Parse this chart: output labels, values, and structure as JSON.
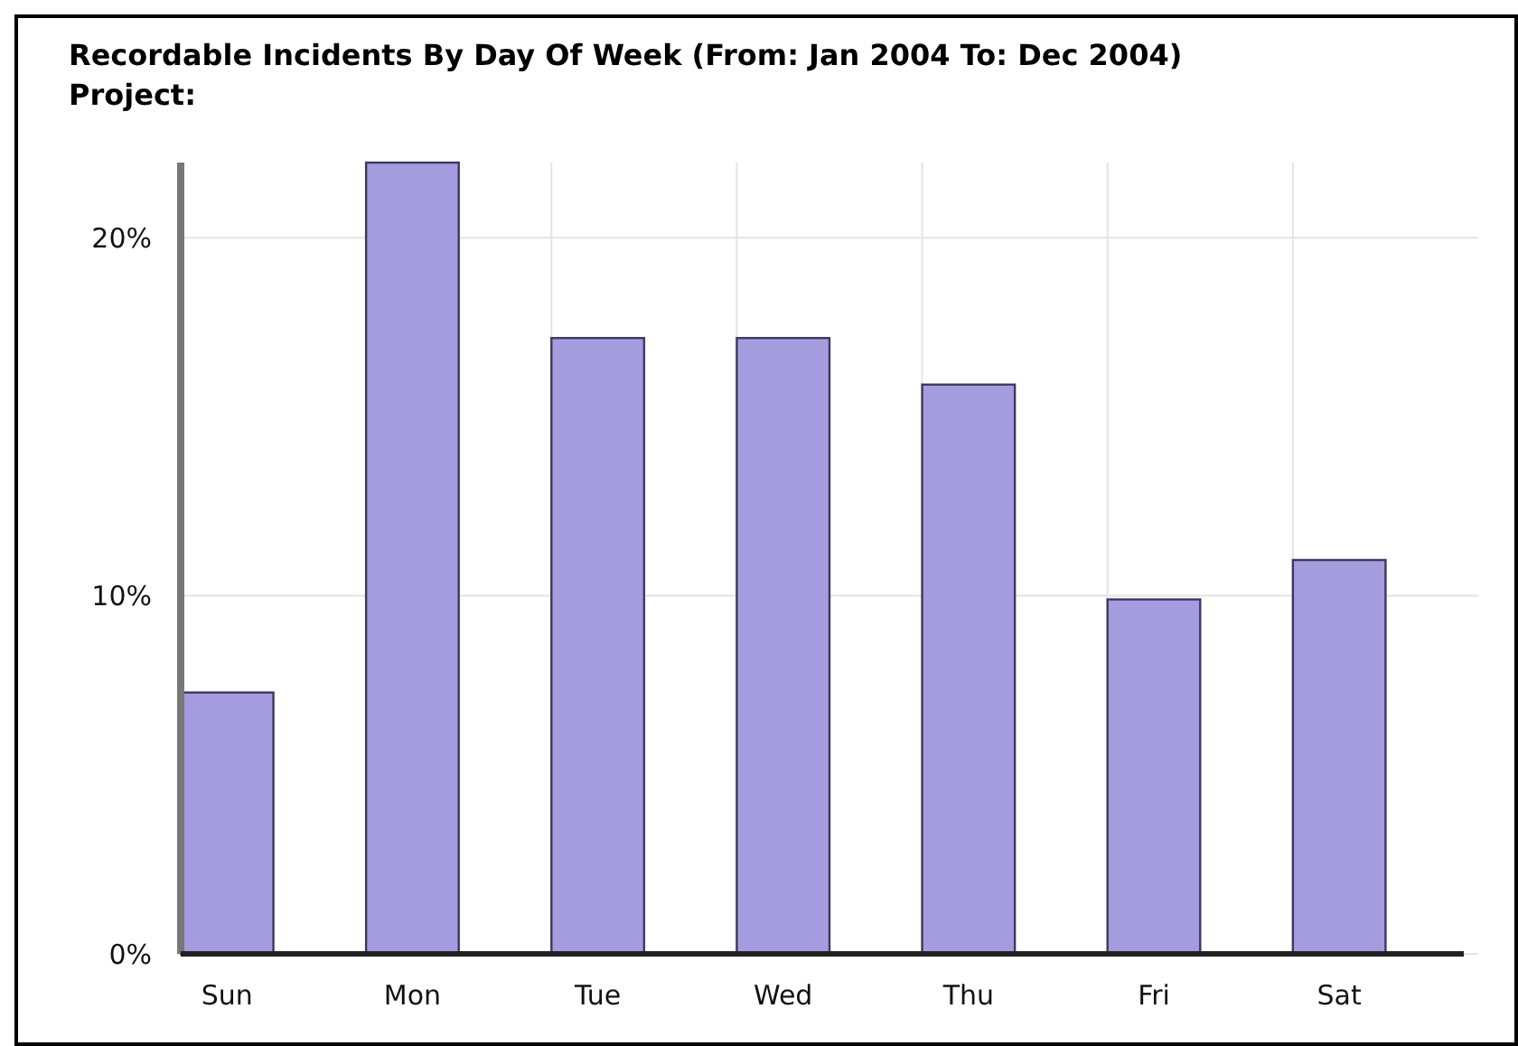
{
  "chart_data": {
    "type": "bar",
    "title": "Recordable Incidents By Day Of Week (From: Jan 2004 To: Dec 2004)",
    "subtitle": "Project:",
    "categories": [
      "Sun",
      "Mon",
      "Tue",
      "Wed",
      "Thu",
      "Fri",
      "Sat"
    ],
    "values": [
      7.3,
      22.1,
      17.2,
      17.2,
      15.9,
      9.9,
      11.0
    ],
    "color": "#a59ce0",
    "ylim": [
      0,
      22.1
    ],
    "yticks": [
      {
        "value": 0,
        "label": "0%"
      },
      {
        "value": 10,
        "label": "10%"
      },
      {
        "value": 20,
        "label": "20%"
      }
    ],
    "grid": true
  }
}
